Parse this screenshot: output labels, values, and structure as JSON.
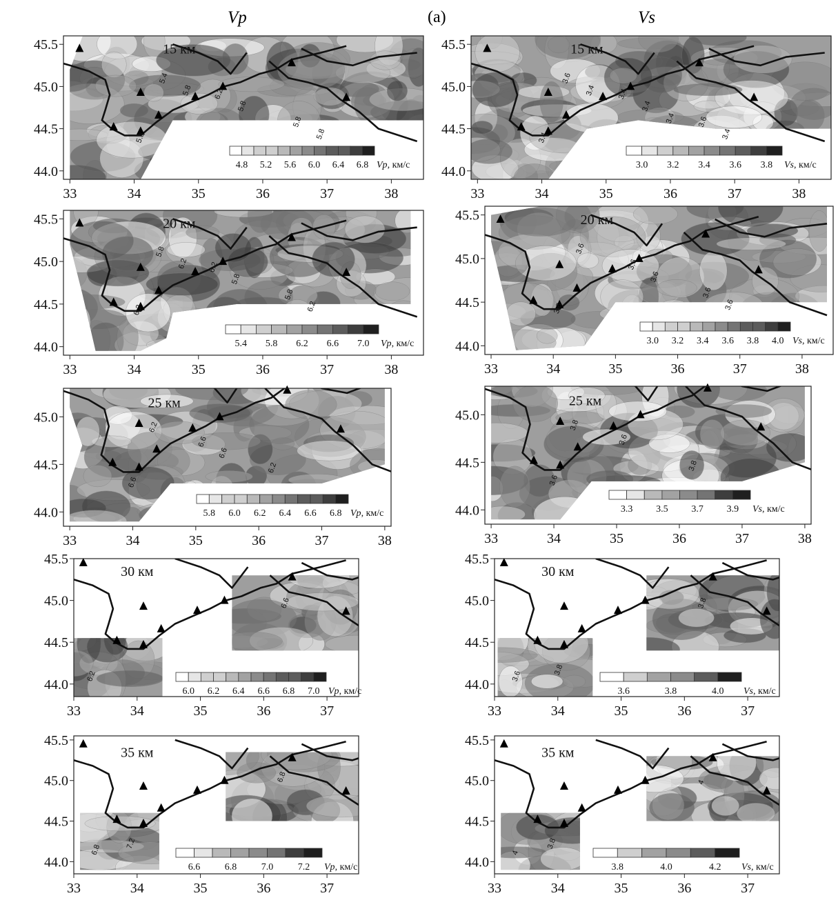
{
  "figure": {
    "label": "(a)",
    "columns": [
      {
        "title": "Vp"
      },
      {
        "title": "Vs"
      }
    ]
  },
  "map_data": {
    "stations": [
      [
        33.15,
        45.45
      ],
      [
        34.1,
        44.93
      ],
      [
        33.68,
        44.52
      ],
      [
        34.1,
        44.47
      ],
      [
        34.38,
        44.66
      ],
      [
        34.95,
        44.88
      ],
      [
        35.38,
        45.0
      ],
      [
        36.45,
        45.28
      ],
      [
        37.3,
        44.87
      ]
    ],
    "coast": [
      [
        32.0,
        45.4
      ],
      [
        32.55,
        45.35
      ],
      [
        33.0,
        45.25
      ],
      [
        33.3,
        45.18
      ],
      [
        33.55,
        45.08
      ],
      [
        33.62,
        44.9
      ],
      [
        33.55,
        44.72
      ],
      [
        33.5,
        44.6
      ],
      [
        33.65,
        44.5
      ],
      [
        33.85,
        44.42
      ],
      [
        34.1,
        44.42
      ],
      [
        34.35,
        44.58
      ],
      [
        34.6,
        44.72
      ],
      [
        34.9,
        44.82
      ],
      [
        35.15,
        44.9
      ],
      [
        35.4,
        45.0
      ],
      [
        35.65,
        45.05
      ],
      [
        35.95,
        45.15
      ],
      [
        36.2,
        45.2
      ],
      [
        36.45,
        45.32
      ],
      [
        36.9,
        45.4
      ],
      [
        37.3,
        45.48
      ]
    ],
    "coast2": [
      [
        36.1,
        45.3
      ],
      [
        36.4,
        45.1
      ],
      [
        36.7,
        45.05
      ],
      [
        37.0,
        44.98
      ],
      [
        37.2,
        44.85
      ],
      [
        37.5,
        44.7
      ],
      [
        37.8,
        44.5
      ],
      [
        38.4,
        44.35
      ]
    ],
    "coast3": [
      [
        34.6,
        45.5
      ],
      [
        35.0,
        45.4
      ],
      [
        35.3,
        45.3
      ],
      [
        35.5,
        45.15
      ],
      [
        35.75,
        45.4
      ]
    ],
    "coast4": [
      [
        36.6,
        45.45
      ],
      [
        37.0,
        45.3
      ],
      [
        37.4,
        45.25
      ],
      [
        37.8,
        45.35
      ],
      [
        38.4,
        45.4
      ]
    ]
  },
  "panels": [
    {
      "id": "vp15",
      "depth": "15 км",
      "yticks": [
        "45.5",
        "45.0",
        "44.5",
        "44.0"
      ],
      "xticks": [
        "33",
        "34",
        "35",
        "36",
        "37",
        "38"
      ],
      "legend": {
        "labels": [
          "4.8",
          "5.2",
          "5.6",
          "6.0",
          "6.4",
          "6.8"
        ],
        "unit_var": "Vp",
        "unit_text": ", км/с"
      },
      "contour_labels": [
        "5.8",
        "6.2",
        "5.8",
        "5.4",
        "5.8",
        "5.8",
        "5.8"
      ]
    },
    {
      "id": "vs15",
      "depth": "15 км",
      "yticks": [
        "45.5",
        "45.0",
        "44.5",
        "44.0"
      ],
      "xticks": [
        "33",
        "34",
        "35",
        "36",
        "37",
        "38"
      ],
      "legend": {
        "labels": [
          "3.0",
          "3.2",
          "3.4",
          "3.6",
          "3.8"
        ],
        "unit_var": "Vs",
        "unit_text": ", км/с"
      },
      "contour_labels": [
        "3.4",
        "3.4",
        "3.6",
        "3.6",
        "3.4",
        "3.4",
        "3.4",
        "3.4"
      ]
    },
    {
      "id": "vp20",
      "depth": "20 км",
      "yticks": [
        "45.5",
        "45.0",
        "44.5",
        "44.0"
      ],
      "xticks": [
        "33",
        "34",
        "35",
        "36",
        "37",
        "38"
      ],
      "legend": {
        "labels": [
          "5.4",
          "5.8",
          "6.2",
          "6.6",
          "7.0"
        ],
        "unit_var": "Vp",
        "unit_text": ", км/с"
      },
      "contour_labels": [
        "6.2",
        "6.2",
        "5.8",
        "5.8",
        "5.8",
        "6.2",
        "6.2"
      ]
    },
    {
      "id": "vs20",
      "depth": "20 км",
      "yticks": [
        "45.5",
        "45.0",
        "44.5",
        "44.0"
      ],
      "xticks": [
        "33",
        "34",
        "35",
        "36",
        "37",
        "38"
      ],
      "legend": {
        "labels": [
          "3.0",
          "3.2",
          "3.4",
          "3.6",
          "3.8",
          "4.0"
        ],
        "unit_var": "Vs",
        "unit_text": ", км/с"
      },
      "contour_labels": [
        "3.6",
        "3.6",
        "3.6",
        "3.6",
        "3.6",
        "3.6"
      ]
    },
    {
      "id": "vp25",
      "depth": "25 км",
      "yticks": [
        "45.0",
        "44.5",
        "44.0"
      ],
      "xticks": [
        "33",
        "34",
        "35",
        "36",
        "37",
        "38"
      ],
      "legend": {
        "labels": [
          "5.8",
          "6.0",
          "6.2",
          "6.4",
          "6.6",
          "6.8"
        ],
        "unit_var": "Vp",
        "unit_text": ", км/с"
      },
      "contour_labels": [
        "6.6",
        "6.6",
        "6.2",
        "6.2",
        "6.6"
      ]
    },
    {
      "id": "vs25",
      "depth": "25 км",
      "yticks": [
        "45.0",
        "44.5",
        "44.0"
      ],
      "xticks": [
        "33",
        "34",
        "35",
        "36",
        "37",
        "38"
      ],
      "legend": {
        "labels": [
          "3.3",
          "3.5",
          "3.7",
          "3.9"
        ],
        "unit_var": "Vs",
        "unit_text": ", км/с"
      },
      "contour_labels": [
        "3.6",
        "3.6",
        "3.8",
        "3.8"
      ]
    },
    {
      "id": "vp30",
      "depth": "30 км",
      "yticks": [
        "45.5",
        "45.0",
        "44.5",
        "44.0"
      ],
      "xticks": [
        "33",
        "34",
        "35",
        "36",
        "37"
      ],
      "legend": {
        "labels": [
          "6.0",
          "6.2",
          "6.4",
          "6.6",
          "6.8",
          "7.0"
        ],
        "unit_var": "Vp",
        "unit_text": ", км/с"
      },
      "contour_labels": [
        "6.2",
        "6.6"
      ]
    },
    {
      "id": "vs30",
      "depth": "30 км",
      "yticks": [
        "45.5",
        "45.0",
        "44.5",
        "44.0"
      ],
      "xticks": [
        "33",
        "34",
        "35",
        "36",
        "37"
      ],
      "legend": {
        "labels": [
          "3.6",
          "3.8",
          "4.0"
        ],
        "unit_var": "Vs",
        "unit_text": ", км/с"
      },
      "contour_labels": [
        "3.6",
        "3.8",
        "3.8"
      ]
    },
    {
      "id": "vp35",
      "depth": "35 км",
      "yticks": [
        "45.5",
        "45.0",
        "44.5",
        "44.0"
      ],
      "xticks": [
        "33",
        "34",
        "35",
        "36",
        "37"
      ],
      "legend": {
        "labels": [
          "6.6",
          "6.8",
          "7.0",
          "7.2"
        ],
        "unit_var": "Vp",
        "unit_text": ", км/с"
      },
      "contour_labels": [
        "6.8",
        "6.8",
        "7.2"
      ]
    },
    {
      "id": "vs35",
      "depth": "35 км",
      "yticks": [
        "45.5",
        "45.0",
        "44.5",
        "44.0"
      ],
      "xticks": [
        "33",
        "34",
        "35",
        "36",
        "37"
      ],
      "legend": {
        "labels": [
          "3.8",
          "4.0",
          "4.2"
        ],
        "unit_var": "Vs",
        "unit_text": ", км/с"
      },
      "contour_labels": [
        "4",
        "4",
        "3.8"
      ]
    }
  ]
}
